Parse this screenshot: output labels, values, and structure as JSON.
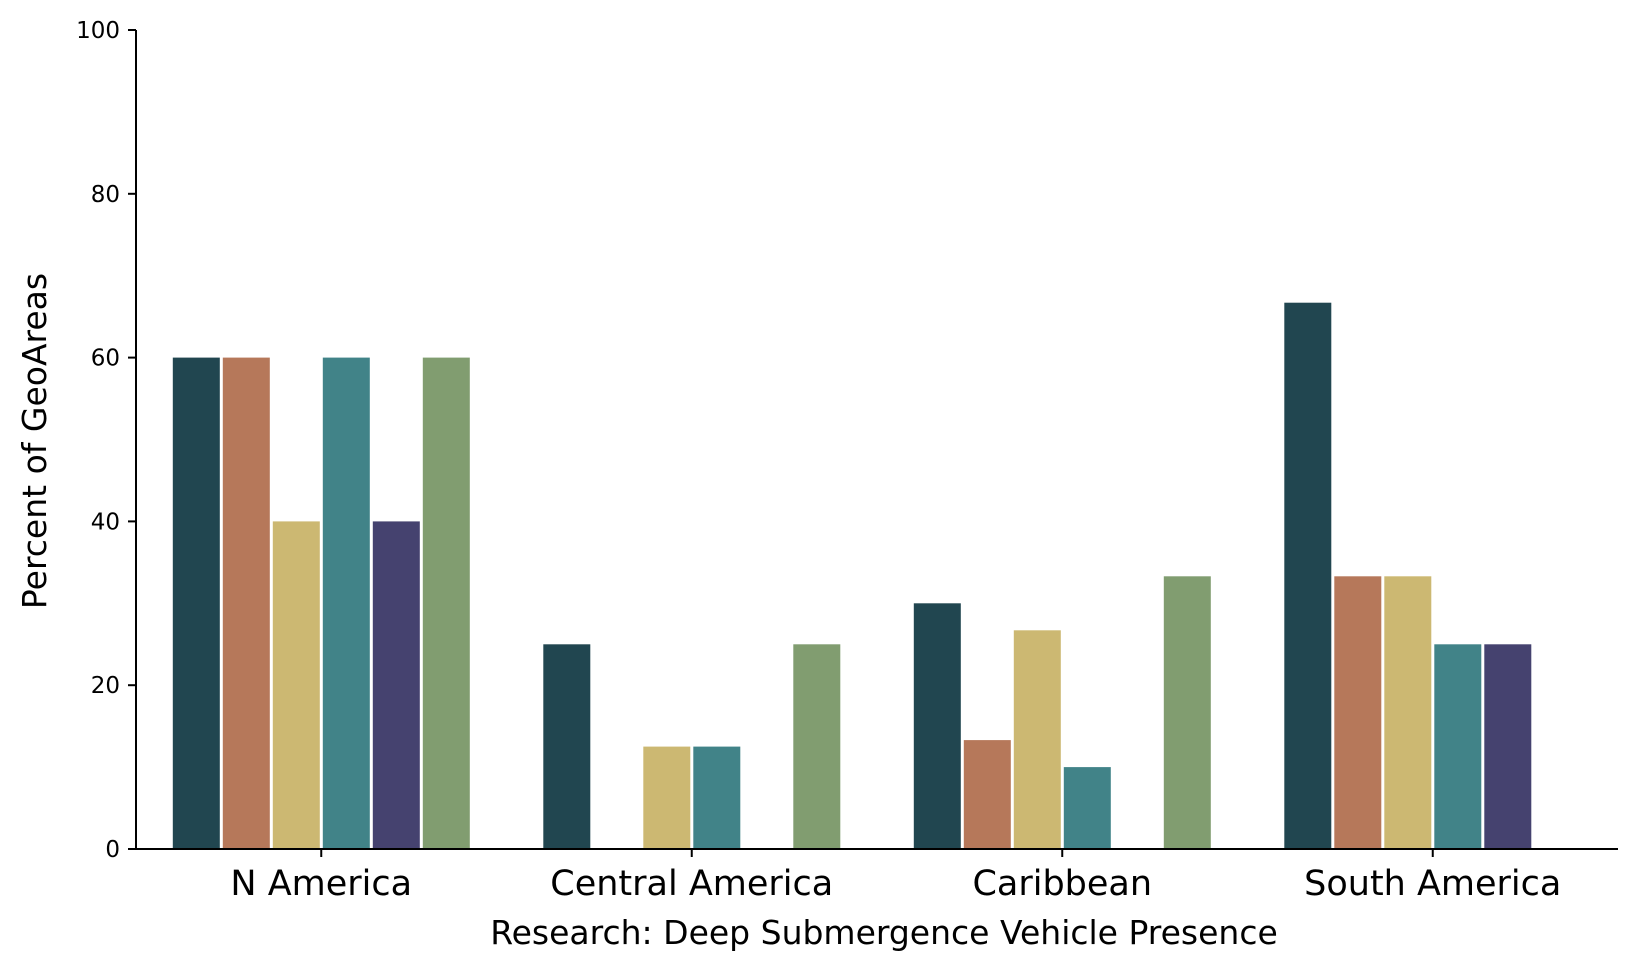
{
  "chart_data": {
    "type": "bar",
    "xlabel": "Research: Deep Submergence Vehicle Presence",
    "ylabel": "Percent of GeoAreas",
    "ylim": [
      0,
      100
    ],
    "yticks": [
      "0",
      "20",
      "40",
      "60",
      "80",
      "100"
    ],
    "grid": false,
    "legend": "none",
    "categories": [
      "N America",
      "Central America",
      "Caribbean",
      "South America"
    ],
    "series": [
      {
        "color": "#214650",
        "values": [
          60,
          25,
          30,
          66.7
        ]
      },
      {
        "color": "#b6785a",
        "values": [
          60,
          0,
          13.3,
          33.3
        ]
      },
      {
        "color": "#ccb872",
        "values": [
          40,
          12.5,
          26.7,
          33.3
        ]
      },
      {
        "color": "#418388",
        "values": [
          60,
          12.5,
          10,
          25
        ]
      },
      {
        "color": "#45426f",
        "values": [
          40,
          0,
          0,
          25
        ]
      },
      {
        "color": "#819d70",
        "values": [
          60,
          25,
          33.3,
          0
        ]
      }
    ]
  }
}
